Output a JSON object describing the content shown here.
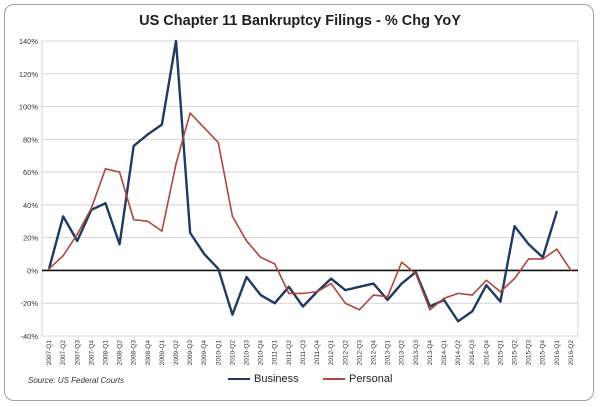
{
  "chart_data": {
    "type": "line",
    "title": "US Chapter 11 Bankruptcy Filings - % Chg YoY",
    "source": "Source: US Federal Courts",
    "xlabel": "",
    "ylabel": "",
    "ylim": [
      -40,
      140
    ],
    "yticks": [
      -40,
      -20,
      0,
      20,
      40,
      60,
      80,
      100,
      120,
      140
    ],
    "ytick_labels": [
      "-40%",
      "-20%",
      "0%",
      "20%",
      "40%",
      "60%",
      "80%",
      "100%",
      "120%",
      "140%"
    ],
    "categories": [
      "2007-Q1",
      "2007-Q2",
      "2007-Q3",
      "2007-Q4",
      "2008-Q1",
      "2008-Q2",
      "2008-Q3",
      "2008-Q4",
      "2009-Q1",
      "2009-Q2",
      "2009-Q3",
      "2009-Q4",
      "2010-Q1",
      "2010-Q2",
      "2010-Q3",
      "2010-Q4",
      "2011-Q1",
      "2011-Q2",
      "2011-Q3",
      "2011-Q4",
      "2012-Q1",
      "2012-Q2",
      "2012-Q3",
      "2012-Q4",
      "2013-Q1",
      "2013-Q2",
      "2013-Q3",
      "2013-Q4",
      "2014-Q1",
      "2014-Q2",
      "2014-Q3",
      "2014-Q4",
      "2015-Q1",
      "2015-Q2",
      "2015-Q3",
      "2015-Q4",
      "2016-Q1",
      "2016-Q2"
    ],
    "series": [
      {
        "name": "Business",
        "color": "#1f3a63",
        "values": [
          1,
          33,
          18,
          37,
          41,
          16,
          76,
          83,
          89,
          140,
          23,
          10,
          1,
          -27,
          -4,
          -15,
          -20,
          -10,
          -22,
          -13,
          -5,
          -12,
          -10,
          -8,
          -18,
          -8,
          -1,
          -22,
          -18,
          -31,
          -25,
          -9,
          -19,
          27,
          16,
          8,
          36,
          null
        ]
      },
      {
        "name": "Personal",
        "color": "#b0463c",
        "values": [
          1,
          9,
          22,
          38,
          62,
          60,
          31,
          30,
          24,
          65,
          96,
          87,
          78,
          33,
          18,
          8,
          4,
          -14,
          -14,
          -13,
          -8,
          -20,
          -24,
          -15,
          -16,
          5,
          -2,
          -24,
          -17,
          -14,
          -15,
          -6,
          -13,
          -5,
          7,
          7,
          13,
          0
        ]
      }
    ],
    "legend": [
      "Business",
      "Personal"
    ],
    "legend_position": "bottom",
    "grid": "horizontal"
  }
}
